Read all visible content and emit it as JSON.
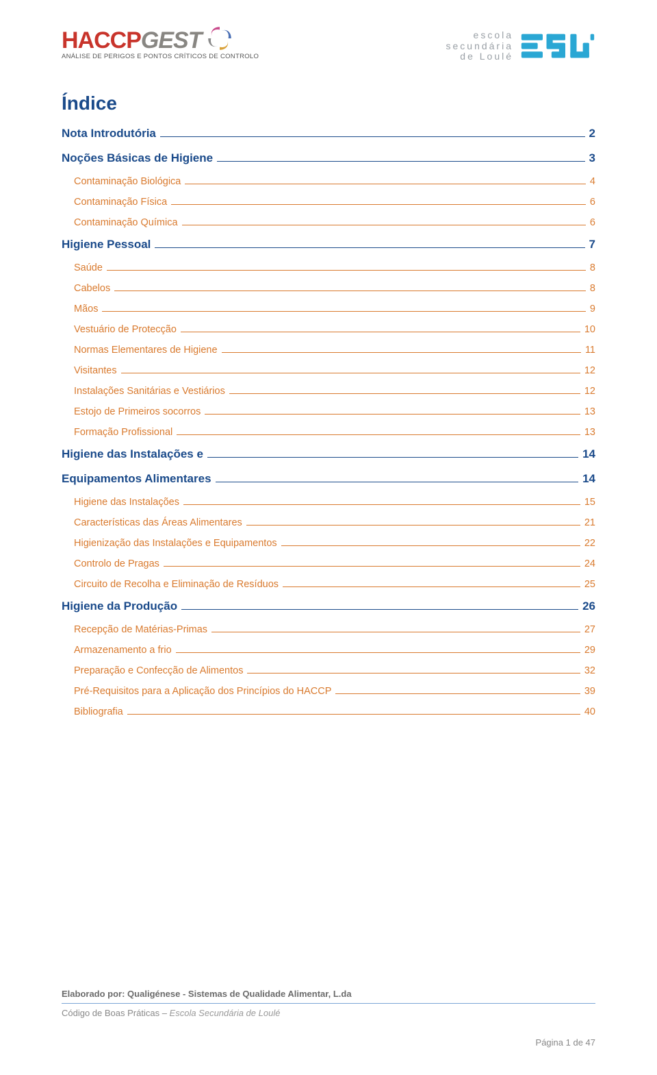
{
  "logo_left": {
    "brand_a": "HACCP",
    "brand_b": "GEST",
    "tagline": "ANÁLISE DE PERIGOS E PONTOS CRÍTICOS DE CONTROLO",
    "icon_colors": {
      "a": "#c94b8c",
      "b": "#4a6fb5",
      "c": "#d9a23a"
    }
  },
  "logo_right": {
    "line1": "escola",
    "line2": "secundária",
    "line3": "de Loulé",
    "short": "esL",
    "icon_color": "#2aa7d4",
    "text_color": "#9aa0a6"
  },
  "title": "Índice",
  "colors": {
    "heading": "#1a4a8a",
    "sub": "#d97a2e",
    "footer_text": "#6b6b6b",
    "footer_border": "#7aa5d6"
  },
  "toc": [
    {
      "label": "Nota Introdutória",
      "page": "2",
      "level": "h2"
    },
    {
      "label": "Noções Básicas de Higiene",
      "page": "3",
      "level": "h2"
    },
    {
      "label": "Contaminação Biológica",
      "page": "4",
      "level": "sub"
    },
    {
      "label": "Contaminação Física",
      "page": "6",
      "level": "sub"
    },
    {
      "label": "Contaminação Química",
      "page": "6",
      "level": "sub"
    },
    {
      "label": "Higiene Pessoal",
      "page": "7",
      "level": "h2"
    },
    {
      "label": "Saúde",
      "page": "8",
      "level": "sub"
    },
    {
      "label": "Cabelos",
      "page": "8",
      "level": "sub"
    },
    {
      "label": "Mãos",
      "page": "9",
      "level": "sub"
    },
    {
      "label": "Vestuário de Protecção",
      "page": "10",
      "level": "sub"
    },
    {
      "label": "Normas Elementares de Higiene",
      "page": "11",
      "level": "sub"
    },
    {
      "label": "Visitantes",
      "page": "12",
      "level": "sub"
    },
    {
      "label": "Instalações Sanitárias e Vestiários",
      "page": "12",
      "level": "sub"
    },
    {
      "label": "Estojo de Primeiros socorros",
      "page": "13",
      "level": "sub"
    },
    {
      "label": "Formação Profissional",
      "page": "13",
      "level": "sub"
    },
    {
      "label": "Higiene das Instalações e",
      "page": "14",
      "level": "h2"
    },
    {
      "label": "Equipamentos Alimentares",
      "page": "14",
      "level": "h2"
    },
    {
      "label": "Higiene das Instalações",
      "page": "15",
      "level": "sub"
    },
    {
      "label": "Características das Áreas Alimentares",
      "page": "21",
      "level": "sub"
    },
    {
      "label": "Higienização das Instalações e Equipamentos",
      "page": "22",
      "level": "sub"
    },
    {
      "label": "Controlo de Pragas",
      "page": "24",
      "level": "sub"
    },
    {
      "label": "Circuito de Recolha e Eliminação de Resíduos",
      "page": "25",
      "level": "sub"
    },
    {
      "label": "Higiene da Produção",
      "page": "26",
      "level": "h2"
    },
    {
      "label": "Recepção de Matérias-Primas",
      "page": "27",
      "level": "sub"
    },
    {
      "label": "Armazenamento a frio",
      "page": "29",
      "level": "sub"
    },
    {
      "label": "Preparação e Confecção de Alimentos",
      "page": "32",
      "level": "sub"
    },
    {
      "label": "Pré-Requisitos para a Aplicação dos Princípios do HACCP",
      "page": "39",
      "level": "sub"
    },
    {
      "label": "Bibliografia",
      "page": "40",
      "level": "sub"
    }
  ],
  "footer": {
    "line1": "Elaborado por: Qualigénese - Sistemas de Qualidade Alimentar, L.da",
    "line2a": "Código de Boas Práticas – ",
    "line2b": "Escola Secundária de Loulé",
    "pagenum": "Página 1 de 47"
  }
}
